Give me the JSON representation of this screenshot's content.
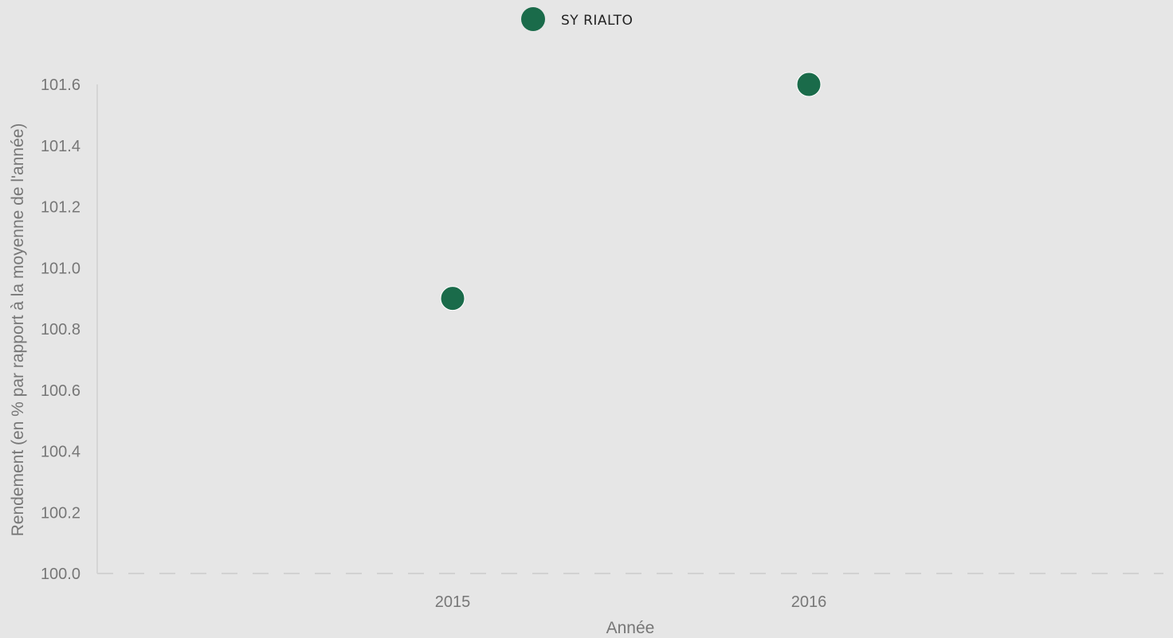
{
  "chart_data": {
    "type": "scatter",
    "title": "",
    "xlabel": "Année",
    "ylabel": "Rendement (en % par rapport à la moyenne de l'année)",
    "x_categories": [
      "2015",
      "2016"
    ],
    "ylim": [
      100.0,
      101.6
    ],
    "y_ticks": [
      "100.0",
      "100.2",
      "100.4",
      "100.6",
      "100.8",
      "101.0",
      "101.2",
      "101.4",
      "101.6"
    ],
    "grid": false,
    "legend_position": "top-center",
    "series": [
      {
        "name": "SY RIALTO",
        "color": "#1a6b4a",
        "points": [
          {
            "x": "2015",
            "y": 100.9
          },
          {
            "x": "2016",
            "y": 101.6
          }
        ]
      }
    ]
  }
}
